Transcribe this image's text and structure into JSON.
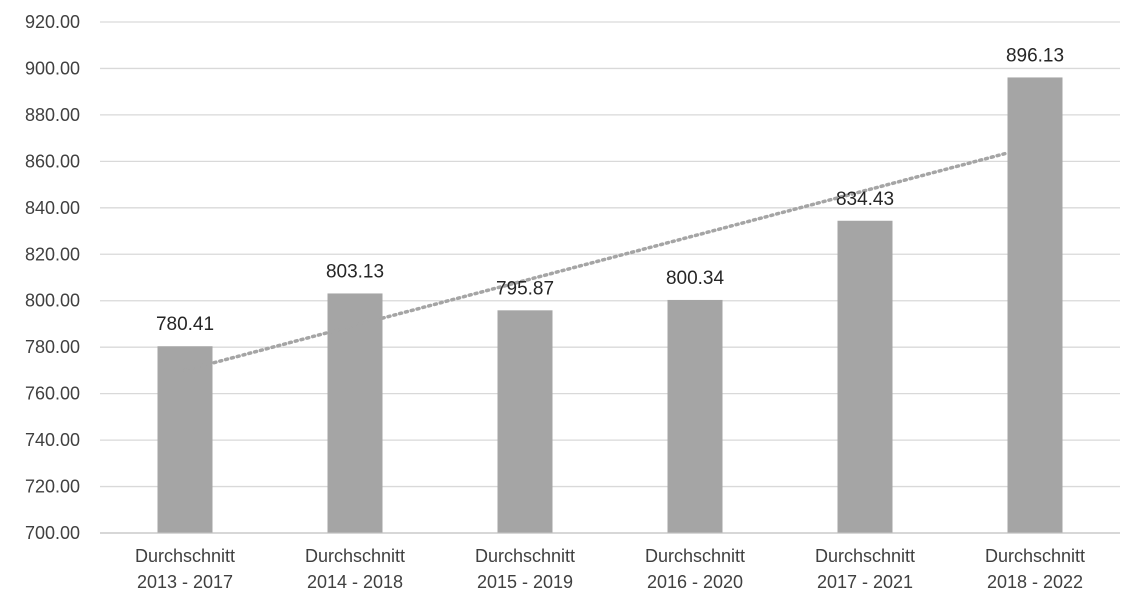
{
  "chart_data": {
    "type": "bar",
    "categories": [
      [
        "Durchschnitt",
        "2013 - 2017"
      ],
      [
        "Durchschnitt",
        "2014 - 2018"
      ],
      [
        "Durchschnitt",
        "2015 - 2019"
      ],
      [
        "Durchschnitt",
        "2016 - 2020"
      ],
      [
        "Durchschnitt",
        "2017 - 2021"
      ],
      [
        "Durchschnitt",
        "2018 - 2022"
      ]
    ],
    "values": [
      780.41,
      803.13,
      795.87,
      800.34,
      834.43,
      896.13
    ],
    "data_labels": [
      "780.41",
      "803.13",
      "795.87",
      "800.34",
      "834.43",
      "896.13"
    ],
    "y_ticks": [
      "700.00",
      "720.00",
      "740.00",
      "760.00",
      "780.00",
      "800.00",
      "820.00",
      "840.00",
      "860.00",
      "880.00",
      "900.00",
      "920.00"
    ],
    "ylim": [
      700,
      920
    ],
    "title": "",
    "xlabel": "",
    "ylabel": "",
    "grid": true,
    "legend": "none",
    "trendline": {
      "type": "linear",
      "style": "dotted"
    },
    "colors": {
      "bar": "#a5a5a5",
      "trendline": "#a5a5a5",
      "grid": "#d9d9d9",
      "axis": "#bfbfbf",
      "text": "#404040"
    }
  }
}
